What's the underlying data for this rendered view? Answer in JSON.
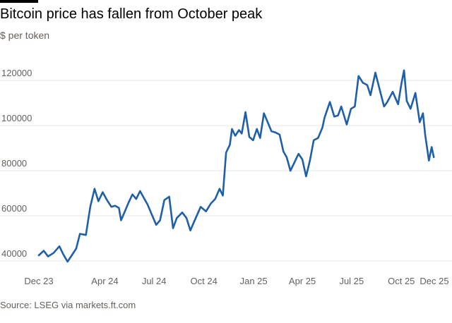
{
  "header": {
    "title": "Bitcoin price has fallen from October peak",
    "subtitle": "$ per token"
  },
  "footer": {
    "source": "Source: LSEG via markets.ft.com"
  },
  "colors": {
    "line": "#1f5fa8",
    "grid": "#e6e6e6",
    "text": "#66605c",
    "title": "#000000"
  },
  "chart_data": {
    "type": "line",
    "title": "Bitcoin price has fallen from October peak",
    "ylabel": "$ per token",
    "xlabel": "",
    "ylim": [
      40000,
      126000
    ],
    "xlim": [
      "2023-12-01",
      "2025-12-01"
    ],
    "y_ticks": [
      40000,
      60000,
      80000,
      100000,
      120000
    ],
    "x_ticks": [
      {
        "date": "2023-12-01",
        "label": "Dec 23"
      },
      {
        "date": "2024-04-01",
        "label": "Apr 24"
      },
      {
        "date": "2024-07-01",
        "label": "Jul 24"
      },
      {
        "date": "2024-10-01",
        "label": "Oct 24"
      },
      {
        "date": "2025-01-01",
        "label": "Jan 25"
      },
      {
        "date": "2025-04-01",
        "label": "Apr 25"
      },
      {
        "date": "2025-07-01",
        "label": "Jul 25"
      },
      {
        "date": "2025-10-01",
        "label": "Oct 25"
      },
      {
        "date": "2025-12-01",
        "label": "Dec 25"
      }
    ],
    "grid": true,
    "series": [
      {
        "name": "Bitcoin",
        "points": [
          [
            "2023-12-01",
            42500
          ],
          [
            "2023-12-10",
            44500
          ],
          [
            "2023-12-18",
            42000
          ],
          [
            "2023-12-28",
            43500
          ],
          [
            "2024-01-08",
            46500
          ],
          [
            "2024-01-15",
            43000
          ],
          [
            "2024-01-23",
            39700
          ],
          [
            "2024-01-31",
            42500
          ],
          [
            "2024-02-08",
            45500
          ],
          [
            "2024-02-15",
            52000
          ],
          [
            "2024-02-26",
            51500
          ],
          [
            "2024-03-05",
            64000
          ],
          [
            "2024-03-13",
            72000
          ],
          [
            "2024-03-20",
            66500
          ],
          [
            "2024-03-28",
            70500
          ],
          [
            "2024-04-05",
            67000
          ],
          [
            "2024-04-13",
            64000
          ],
          [
            "2024-04-20",
            64500
          ],
          [
            "2024-04-27",
            63500
          ],
          [
            "2024-05-01",
            58000
          ],
          [
            "2024-05-08",
            62000
          ],
          [
            "2024-05-15",
            66000
          ],
          [
            "2024-05-22",
            69500
          ],
          [
            "2024-05-29",
            67500
          ],
          [
            "2024-06-05",
            71000
          ],
          [
            "2024-06-12",
            68000
          ],
          [
            "2024-06-19",
            65000
          ],
          [
            "2024-06-26",
            61000
          ],
          [
            "2024-07-05",
            56000
          ],
          [
            "2024-07-12",
            58000
          ],
          [
            "2024-07-20",
            67000
          ],
          [
            "2024-07-29",
            68500
          ],
          [
            "2024-08-05",
            54500
          ],
          [
            "2024-08-12",
            59000
          ],
          [
            "2024-08-22",
            61500
          ],
          [
            "2024-08-30",
            59000
          ],
          [
            "2024-09-06",
            53500
          ],
          [
            "2024-09-15",
            58500
          ],
          [
            "2024-09-25",
            64000
          ],
          [
            "2024-10-05",
            62000
          ],
          [
            "2024-10-14",
            65500
          ],
          [
            "2024-10-22",
            67500
          ],
          [
            "2024-10-30",
            72000
          ],
          [
            "2024-11-05",
            69000
          ],
          [
            "2024-11-11",
            88000
          ],
          [
            "2024-11-18",
            91500
          ],
          [
            "2024-11-22",
            98500
          ],
          [
            "2024-11-28",
            95500
          ],
          [
            "2024-12-05",
            98000
          ],
          [
            "2024-12-10",
            96500
          ],
          [
            "2024-12-17",
            106000
          ],
          [
            "2024-12-24",
            95000
          ],
          [
            "2024-12-31",
            93500
          ],
          [
            "2025-01-07",
            98500
          ],
          [
            "2025-01-13",
            94500
          ],
          [
            "2025-01-20",
            105500
          ],
          [
            "2025-01-27",
            101500
          ],
          [
            "2025-02-03",
            97500
          ],
          [
            "2025-02-10",
            97000
          ],
          [
            "2025-02-18",
            96000
          ],
          [
            "2025-02-25",
            88500
          ],
          [
            "2025-03-03",
            86000
          ],
          [
            "2025-03-10",
            80000
          ],
          [
            "2025-03-17",
            83500
          ],
          [
            "2025-03-25",
            87500
          ],
          [
            "2025-04-01",
            85000
          ],
          [
            "2025-04-08",
            77500
          ],
          [
            "2025-04-15",
            84500
          ],
          [
            "2025-04-22",
            93500
          ],
          [
            "2025-04-30",
            94500
          ],
          [
            "2025-05-08",
            99000
          ],
          [
            "2025-05-12",
            103500
          ],
          [
            "2025-05-22",
            110500
          ],
          [
            "2025-05-30",
            104000
          ],
          [
            "2025-06-06",
            104500
          ],
          [
            "2025-06-12",
            108500
          ],
          [
            "2025-06-22",
            100500
          ],
          [
            "2025-06-30",
            107500
          ],
          [
            "2025-07-07",
            108500
          ],
          [
            "2025-07-14",
            122000
          ],
          [
            "2025-07-22",
            119000
          ],
          [
            "2025-07-30",
            118000
          ],
          [
            "2025-08-05",
            113500
          ],
          [
            "2025-08-14",
            123500
          ],
          [
            "2025-08-22",
            116000
          ],
          [
            "2025-08-30",
            108500
          ],
          [
            "2025-09-05",
            110500
          ],
          [
            "2025-09-15",
            115000
          ],
          [
            "2025-09-25",
            109500
          ],
          [
            "2025-10-01",
            118500
          ],
          [
            "2025-10-06",
            124500
          ],
          [
            "2025-10-11",
            111000
          ],
          [
            "2025-10-18",
            107500
          ],
          [
            "2025-10-27",
            114500
          ],
          [
            "2025-11-04",
            101500
          ],
          [
            "2025-11-10",
            105500
          ],
          [
            "2025-11-14",
            96000
          ],
          [
            "2025-11-21",
            84500
          ],
          [
            "2025-11-26",
            90500
          ],
          [
            "2025-11-30",
            86000
          ]
        ]
      }
    ]
  }
}
